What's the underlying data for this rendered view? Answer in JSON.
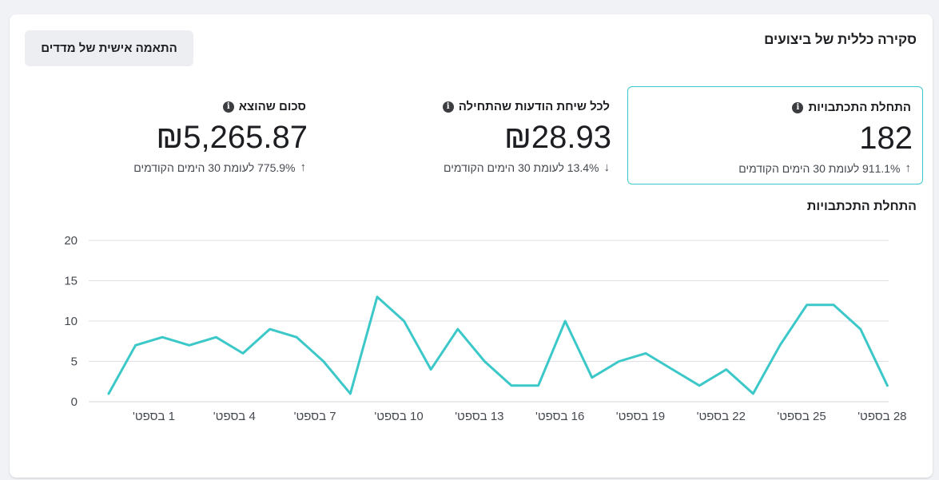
{
  "header": {
    "title": "סקירה כללית של ביצועים",
    "customize_button": "התאמה אישית של מדדים"
  },
  "metrics": [
    {
      "label": "התחלת התכתבויות",
      "value": "182",
      "change": "911.1% לעומת 30 הימים הקודמים",
      "direction": "up",
      "selected": true
    },
    {
      "label": "לכל שיחת הודעות שהתחילה",
      "value": "₪28.93",
      "change": "13.4% לעומת 30 הימים הקודמים",
      "direction": "down",
      "selected": false
    },
    {
      "label": "סכום שהוצא",
      "value": "₪5,265.87",
      "change": "775.9% לעומת 30 הימים הקודמים",
      "direction": "up",
      "selected": false
    }
  ],
  "colors": {
    "line": "#3cc8c8",
    "selected_border": "#3cc8c8",
    "grid": "#dddfe2"
  },
  "chart_data": {
    "type": "line",
    "title": "התחלת התכתבויות",
    "x": [
      1,
      2,
      3,
      4,
      5,
      6,
      7,
      8,
      9,
      10,
      11,
      12,
      13,
      14,
      15,
      16,
      17,
      18,
      19,
      20,
      21,
      22,
      23,
      24,
      25,
      26,
      27,
      28,
      29,
      30
    ],
    "x_tick_labels": [
      "1 בספט'",
      "4 בספט'",
      "7 בספט'",
      "10 בספט'",
      "13 בספט'",
      "16 בספט'",
      "19 בספט'",
      "22 בספט'",
      "25 בספט'",
      "28 בספט'"
    ],
    "x_tick_days": [
      1,
      4,
      7,
      10,
      13,
      16,
      19,
      22,
      25,
      28
    ],
    "series": [
      {
        "values": [
          1,
          7,
          8,
          7,
          8,
          6,
          9,
          8,
          5,
          1,
          13,
          10,
          4,
          9,
          5,
          2,
          2,
          10,
          3,
          5,
          6,
          4,
          2,
          4,
          1,
          7,
          12,
          12,
          9,
          2
        ]
      }
    ],
    "ylim": [
      0,
      20
    ],
    "yticks": [
      0,
      5,
      10,
      15,
      20
    ],
    "grid": true
  }
}
